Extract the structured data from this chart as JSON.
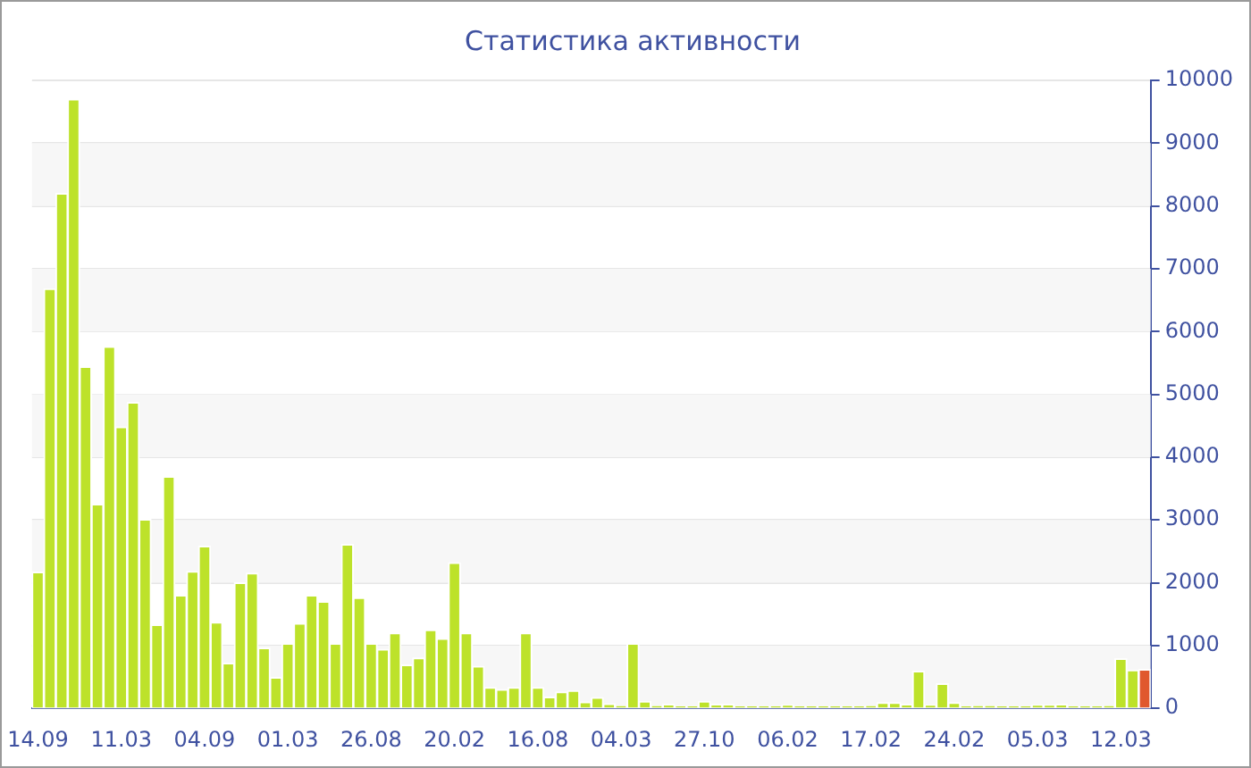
{
  "chart_data": {
    "type": "bar",
    "title": "Статистика активности",
    "categories": [
      "14.09",
      null,
      null,
      null,
      null,
      null,
      null,
      "11.03",
      null,
      null,
      null,
      null,
      null,
      null,
      "04.09",
      null,
      null,
      null,
      null,
      null,
      null,
      "01.03",
      null,
      null,
      null,
      null,
      null,
      null,
      "26.08",
      null,
      null,
      null,
      null,
      null,
      null,
      "20.02",
      null,
      null,
      null,
      null,
      null,
      null,
      "16.08",
      null,
      null,
      null,
      null,
      null,
      null,
      "04.03",
      null,
      null,
      null,
      null,
      null,
      null,
      "27.10",
      null,
      null,
      null,
      null,
      null,
      null,
      "06.02",
      null,
      null,
      null,
      null,
      null,
      null,
      "17.02",
      null,
      null,
      null,
      null,
      null,
      null,
      "24.02",
      null,
      null,
      null,
      null,
      null,
      null,
      "05.03",
      null,
      null,
      null,
      null,
      null,
      null,
      "12.03",
      null,
      null
    ],
    "values": [
      2170,
      6680,
      8200,
      9700,
      5440,
      3250,
      5760,
      4480,
      4870,
      3010,
      1330,
      3690,
      1800,
      2180,
      2580,
      1370,
      720,
      2000,
      2150,
      960,
      490,
      1030,
      1350,
      1800,
      1700,
      1030,
      2610,
      1760,
      1030,
      940,
      1200,
      690,
      800,
      1250,
      1110,
      2320,
      1200,
      670,
      330,
      300,
      330,
      1200,
      330,
      180,
      260,
      280,
      100,
      170,
      70,
      40,
      1030,
      110,
      40,
      60,
      30,
      30,
      110,
      60,
      60,
      30,
      30,
      30,
      30,
      50,
      30,
      30,
      30,
      30,
      30,
      30,
      40,
      90,
      90,
      60,
      590,
      50,
      390,
      90,
      30,
      40,
      40,
      30,
      30,
      30,
      50,
      50,
      60,
      30,
      30,
      30,
      40,
      790,
      610,
      620
    ],
    "colors": [
      "#bde22a",
      "#bde22a",
      "#bde22a",
      "#bde22a",
      "#bde22a",
      "#bde22a",
      "#bde22a",
      "#bde22a",
      "#bde22a",
      "#bde22a",
      "#bde22a",
      "#bde22a",
      "#bde22a",
      "#bde22a",
      "#bde22a",
      "#bde22a",
      "#bde22a",
      "#bde22a",
      "#bde22a",
      "#bde22a",
      "#bde22a",
      "#bde22a",
      "#bde22a",
      "#bde22a",
      "#bde22a",
      "#bde22a",
      "#bde22a",
      "#bde22a",
      "#bde22a",
      "#bde22a",
      "#bde22a",
      "#bde22a",
      "#bde22a",
      "#bde22a",
      "#bde22a",
      "#bde22a",
      "#bde22a",
      "#bde22a",
      "#bde22a",
      "#bde22a",
      "#bde22a",
      "#bde22a",
      "#bde22a",
      "#bde22a",
      "#bde22a",
      "#bde22a",
      "#bde22a",
      "#bde22a",
      "#bde22a",
      "#bde22a",
      "#bde22a",
      "#bde22a",
      "#bde22a",
      "#bde22a",
      "#bde22a",
      "#bde22a",
      "#bde22a",
      "#bde22a",
      "#bde22a",
      "#bde22a",
      "#bde22a",
      "#bde22a",
      "#bde22a",
      "#bde22a",
      "#bde22a",
      "#bde22a",
      "#bde22a",
      "#bde22a",
      "#bde22a",
      "#bde22a",
      "#bde22a",
      "#bde22a",
      "#bde22a",
      "#bde22a",
      "#bde22a",
      "#bde22a",
      "#bde22a",
      "#bde22a",
      "#bde22a",
      "#bde22a",
      "#bde22a",
      "#bde22a",
      "#bde22a",
      "#bde22a",
      "#bde22a",
      "#bde22a",
      "#bde22a",
      "#bde22a",
      "#bde22a",
      "#bde22a",
      "#bde22a",
      "#bde22a",
      "#bde22a",
      "#e0582e"
    ],
    "ylim": [
      0,
      10000
    ],
    "yticks": [
      0,
      1000,
      2000,
      3000,
      4000,
      5000,
      6000,
      7000,
      8000,
      9000,
      10000
    ],
    "grid": "y",
    "legend": false
  }
}
